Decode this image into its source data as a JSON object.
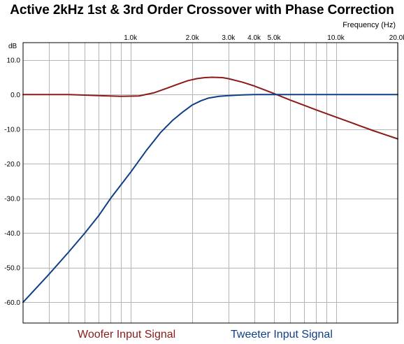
{
  "chart_data": {
    "type": "line",
    "title": "Active 2kHz 1st & 3rd Order Crossover with Phase Correction",
    "xlabel": "Frequency  (Hz)",
    "ylabel": "dB",
    "xscale": "log",
    "xlim": [
      300,
      20000
    ],
    "ylim": [
      -66,
      15
    ],
    "grid": true,
    "legend_position": "bottom",
    "x_ticks": [
      {
        "value": 1000,
        "label": "1.0k"
      },
      {
        "value": 2000,
        "label": "2.0k"
      },
      {
        "value": 3000,
        "label": "3.0k"
      },
      {
        "value": 4000,
        "label": "4.0k"
      },
      {
        "value": 5000,
        "label": "5.0k"
      },
      {
        "value": 10000,
        "label": "10.0k"
      },
      {
        "value": 20000,
        "label": "20.0k"
      }
    ],
    "x_minor_gridlines": [
      400,
      500,
      600,
      700,
      800,
      900,
      6000,
      7000,
      8000,
      9000
    ],
    "y_ticks": [
      {
        "value": 10,
        "label": "10.0"
      },
      {
        "value": 0,
        "label": "0.0"
      },
      {
        "value": -10,
        "label": "-10.0"
      },
      {
        "value": -20,
        "label": "-20.0"
      },
      {
        "value": -30,
        "label": "-30.0"
      },
      {
        "value": -40,
        "label": "-40.0"
      },
      {
        "value": -50,
        "label": "-50.0"
      },
      {
        "value": -60,
        "label": "-60.0"
      }
    ],
    "series": [
      {
        "name": "Woofer Input Signal",
        "color": "#8b1a1a",
        "x": [
          300,
          500,
          700,
          900,
          1100,
          1300,
          1500,
          1700,
          1900,
          2100,
          2300,
          2500,
          2800,
          3000,
          3500,
          4000,
          5000,
          6000,
          7000,
          8000,
          10000,
          12000,
          15000,
          17000,
          20000
        ],
        "y": [
          0,
          0,
          -0.3,
          -0.5,
          -0.4,
          0.5,
          1.8,
          3.0,
          4.0,
          4.6,
          4.9,
          5.0,
          4.9,
          4.6,
          3.6,
          2.5,
          0.3,
          -1.6,
          -3.1,
          -4.4,
          -6.5,
          -8.2,
          -10.3,
          -11.4,
          -12.8
        ]
      },
      {
        "name": "Tweeter Input Signal",
        "color": "#0e3f87",
        "x": [
          300,
          400,
          500,
          600,
          700,
          800,
          1000,
          1200,
          1400,
          1600,
          1800,
          2000,
          2200,
          2400,
          2700,
          3000,
          3500,
          4000,
          5000,
          6000,
          8000,
          10000,
          20000
        ],
        "y": [
          -60,
          -52,
          -45.5,
          -40,
          -35,
          -30,
          -22.5,
          -16,
          -11,
          -7.5,
          -5,
          -3,
          -1.8,
          -1,
          -0.5,
          -0.3,
          -0.1,
          0,
          0,
          0,
          0,
          0,
          0
        ]
      }
    ]
  }
}
